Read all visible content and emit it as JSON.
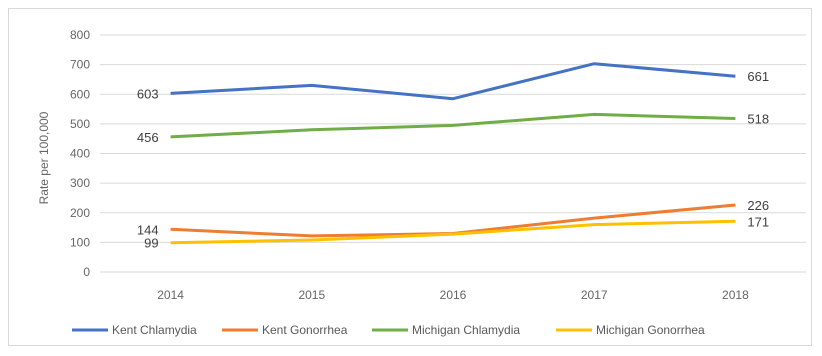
{
  "chart_data": {
    "type": "line",
    "title": "",
    "xlabel": "",
    "ylabel": "Rate per 100,000",
    "categories": [
      "2014",
      "2015",
      "2016",
      "2017",
      "2018"
    ],
    "ylim": [
      0,
      800
    ],
    "yticks": [
      "0",
      "100",
      "200",
      "300",
      "400",
      "500",
      "600",
      "700",
      "800"
    ],
    "grid": true,
    "legend_position": "bottom",
    "series": [
      {
        "name": "Kent Chlamydia",
        "color": "#4472C4",
        "values": [
          603,
          630,
          585,
          703,
          661
        ],
        "labels": {
          "first": "603",
          "last": "661"
        }
      },
      {
        "name": "Kent Gonorrhea",
        "color": "#ED7D31",
        "values": [
          144,
          122,
          130,
          182,
          226
        ],
        "labels": {
          "first": "144",
          "last": "226"
        }
      },
      {
        "name": "Michigan Chlamydia",
        "color": "#70AD47",
        "values": [
          456,
          480,
          495,
          532,
          518
        ],
        "labels": {
          "first": "456",
          "last": "518"
        }
      },
      {
        "name": "Michigan Gonorrhea",
        "color": "#FFC000",
        "values": [
          99,
          108,
          128,
          160,
          171
        ],
        "labels": {
          "first": "99",
          "last": "171"
        }
      }
    ]
  }
}
